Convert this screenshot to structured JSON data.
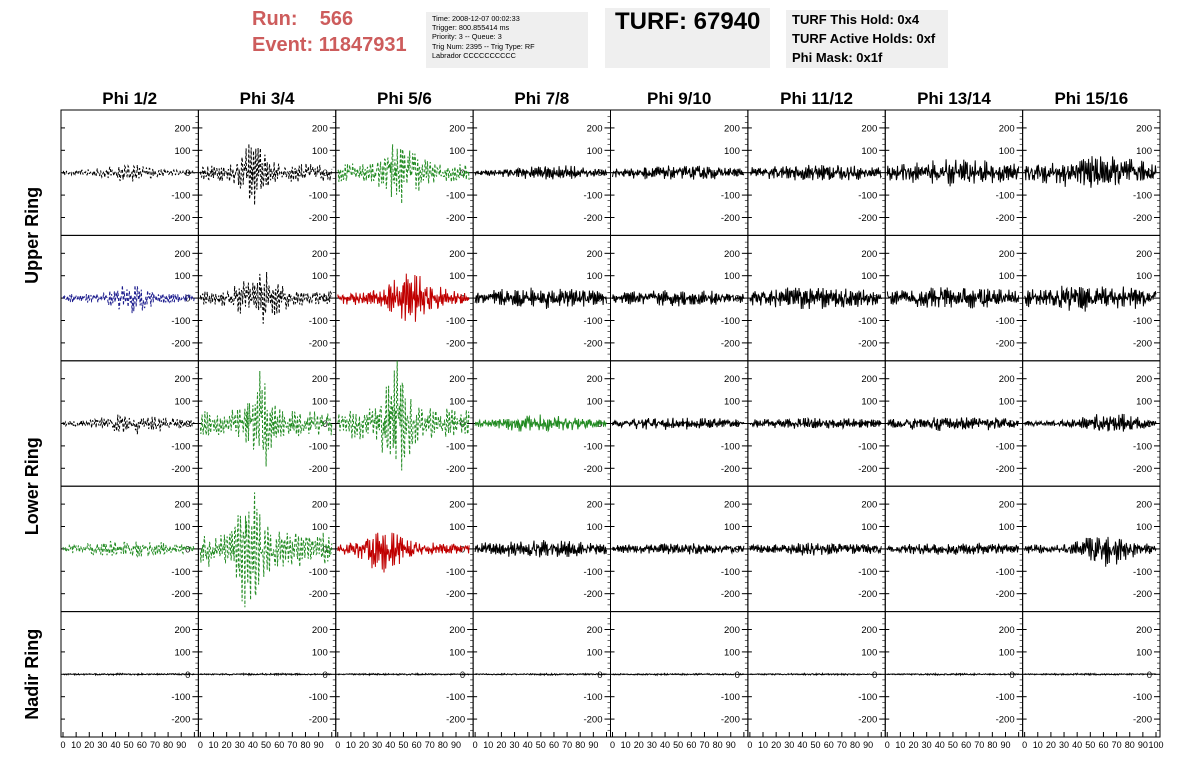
{
  "header": {
    "run_label": "Run:",
    "run_value": "566",
    "event_label": "Event:",
    "event_value": "11847931",
    "info_lines": [
      "Time: 2008-12-07 00:02:33",
      "Trigger: 800.855414 ms",
      "Priority: 3 -- Queue: 3",
      "Trig Num: 2395 -- Trig Type: RF",
      "Labrador CCCCCCCCCC"
    ],
    "turf": "TURF: 67940",
    "hold_lines": [
      "TURF This Hold: 0x4",
      "TURF Active Holds: 0xf",
      "Phi Mask: 0x1f"
    ]
  },
  "colors": {
    "header_accent": "#cd5c5c",
    "box_bg": "#efefef",
    "black": "#000000",
    "green": "#228b22",
    "blue": "#1a1a8c",
    "red": "#c00000"
  },
  "chart_data": {
    "type": "line",
    "columns": [
      "Phi 1/2",
      "Phi 3/4",
      "Phi 5/6",
      "Phi 7/8",
      "Phi 9/10",
      "Phi 11/12",
      "Phi 13/14",
      "Phi 15/16"
    ],
    "rows": [
      "Upper Ring",
      "Lower Ring",
      "Nadir Ring"
    ],
    "xlim": [
      0,
      100
    ],
    "ylim": [
      -280,
      280
    ],
    "y_ticks": [
      -200,
      -100,
      0,
      100,
      200
    ],
    "x_tick_labels": [
      "0",
      "10",
      "20",
      "30",
      "40",
      "50",
      "60",
      "70",
      "80",
      "90",
      "100"
    ],
    "panels": [
      [
        {
          "color": "black",
          "dashed": true,
          "amp": 30,
          "peak": 50,
          "width": 22,
          "freq": 0.9
        },
        {
          "color": "black",
          "dashed": true,
          "amp": 120,
          "peak": 40,
          "width": 10,
          "freq": 1.2
        },
        {
          "color": "green",
          "dashed": true,
          "amp": 120,
          "peak": 48,
          "width": 14,
          "freq": 1.1
        },
        {
          "color": "black",
          "dashed": false,
          "amp": 25,
          "peak": 60,
          "width": 40,
          "freq": 1.6
        },
        {
          "color": "black",
          "dashed": false,
          "amp": 25,
          "peak": 50,
          "width": 60,
          "freq": 1.7
        },
        {
          "color": "black",
          "dashed": false,
          "amp": 30,
          "peak": 55,
          "width": 60,
          "freq": 1.7
        },
        {
          "color": "black",
          "dashed": false,
          "amp": 45,
          "peak": 55,
          "width": 60,
          "freq": 1.7
        },
        {
          "color": "black",
          "dashed": false,
          "amp": 55,
          "peak": 55,
          "width": 50,
          "freq": 1.6
        }
      ],
      [
        {
          "color": "blue",
          "dashed": true,
          "amp": 55,
          "peak": 52,
          "width": 18,
          "freq": 1.3
        },
        {
          "color": "black",
          "dashed": true,
          "amp": 95,
          "peak": 45,
          "width": 16,
          "freq": 1.2
        },
        {
          "color": "red",
          "dashed": false,
          "amp": 85,
          "peak": 55,
          "width": 20,
          "freq": 1.6
        },
        {
          "color": "black",
          "dashed": false,
          "amp": 35,
          "peak": 50,
          "width": 60,
          "freq": 1.7
        },
        {
          "color": "black",
          "dashed": false,
          "amp": 28,
          "peak": 50,
          "width": 60,
          "freq": 1.7
        },
        {
          "color": "black",
          "dashed": false,
          "amp": 38,
          "peak": 50,
          "width": 60,
          "freq": 1.7
        },
        {
          "color": "black",
          "dashed": false,
          "amp": 40,
          "peak": 50,
          "width": 60,
          "freq": 1.7
        },
        {
          "color": "black",
          "dashed": false,
          "amp": 45,
          "peak": 50,
          "width": 60,
          "freq": 1.7
        }
      ],
      [
        {
          "color": "black",
          "dashed": true,
          "amp": 35,
          "peak": 55,
          "width": 30,
          "freq": 1.2
        },
        {
          "color": "green",
          "dashed": true,
          "amp": 170,
          "peak": 45,
          "width": 10,
          "freq": 1.1
        },
        {
          "color": "green",
          "dashed": true,
          "amp": 210,
          "peak": 45,
          "width": 10,
          "freq": 1.0
        },
        {
          "color": "green",
          "dashed": false,
          "amp": 30,
          "peak": 50,
          "width": 40,
          "freq": 1.5
        },
        {
          "color": "black",
          "dashed": false,
          "amp": 22,
          "peak": 50,
          "width": 60,
          "freq": 1.7
        },
        {
          "color": "black",
          "dashed": false,
          "amp": 20,
          "peak": 50,
          "width": 60,
          "freq": 1.7
        },
        {
          "color": "black",
          "dashed": false,
          "amp": 25,
          "peak": 50,
          "width": 60,
          "freq": 1.7
        },
        {
          "color": "black",
          "dashed": false,
          "amp": 35,
          "peak": 65,
          "width": 25,
          "freq": 1.6
        }
      ],
      [
        {
          "color": "green",
          "dashed": true,
          "amp": 30,
          "peak": 50,
          "width": 40,
          "freq": 1.2
        },
        {
          "color": "green",
          "dashed": true,
          "amp": 230,
          "peak": 38,
          "width": 10,
          "freq": 1.0
        },
        {
          "color": "red",
          "dashed": false,
          "amp": 80,
          "peak": 35,
          "width": 15,
          "freq": 1.6
        },
        {
          "color": "black",
          "dashed": false,
          "amp": 30,
          "peak": 50,
          "width": 60,
          "freq": 1.7
        },
        {
          "color": "black",
          "dashed": false,
          "amp": 20,
          "peak": 50,
          "width": 60,
          "freq": 1.7
        },
        {
          "color": "black",
          "dashed": false,
          "amp": 22,
          "peak": 50,
          "width": 60,
          "freq": 1.7
        },
        {
          "color": "black",
          "dashed": false,
          "amp": 22,
          "peak": 50,
          "width": 60,
          "freq": 1.7
        },
        {
          "color": "black",
          "dashed": false,
          "amp": 60,
          "peak": 62,
          "width": 18,
          "freq": 1.5
        }
      ],
      [
        {
          "color": "black",
          "dashed": false,
          "amp": 3,
          "peak": 50,
          "width": 60,
          "freq": 1.7
        },
        {
          "color": "black",
          "dashed": false,
          "amp": 3,
          "peak": 50,
          "width": 60,
          "freq": 1.7
        },
        {
          "color": "black",
          "dashed": false,
          "amp": 3,
          "peak": 50,
          "width": 60,
          "freq": 1.7
        },
        {
          "color": "black",
          "dashed": false,
          "amp": 3,
          "peak": 50,
          "width": 60,
          "freq": 1.7
        },
        {
          "color": "black",
          "dashed": false,
          "amp": 3,
          "peak": 50,
          "width": 60,
          "freq": 1.7
        },
        {
          "color": "black",
          "dashed": false,
          "amp": 3,
          "peak": 50,
          "width": 60,
          "freq": 1.7
        },
        {
          "color": "black",
          "dashed": false,
          "amp": 3,
          "peak": 50,
          "width": 60,
          "freq": 1.7
        },
        {
          "color": "black",
          "dashed": false,
          "amp": 3,
          "peak": 50,
          "width": 60,
          "freq": 1.7
        }
      ]
    ]
  }
}
